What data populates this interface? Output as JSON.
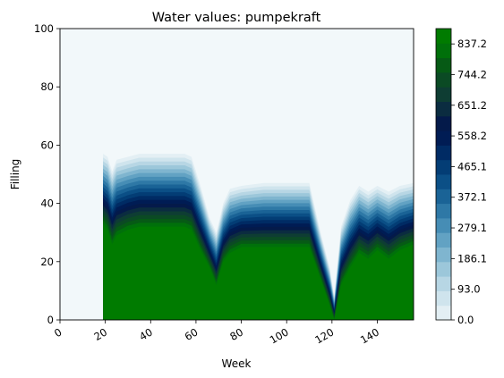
{
  "chart_data": {
    "type": "heatmap",
    "title": "Water values: pumpekraft",
    "xlabel": "Week",
    "ylabel": "Filling",
    "xlim": [
      0,
      156
    ],
    "ylim": [
      0,
      100
    ],
    "x_ticks": [
      "0",
      "20",
      "40",
      "60",
      "80",
      "100",
      "120",
      "140"
    ],
    "y_ticks": [
      "0",
      "20",
      "40",
      "60",
      "80",
      "100"
    ],
    "colorbar": {
      "colormap": "ocean_r",
      "min": 0.0,
      "max": 883.7,
      "tick_labels": [
        "0.0",
        "93.0",
        "186.1",
        "279.1",
        "372.1",
        "465.1",
        "558.2",
        "651.2",
        "744.2",
        "837.2"
      ]
    },
    "contour_profile": {
      "description_weeks": [
        0,
        18,
        19,
        21,
        23,
        25,
        30,
        35,
        40,
        45,
        50,
        55,
        58,
        62,
        66,
        69,
        72,
        75,
        80,
        90,
        100,
        110,
        115,
        119,
        121,
        124,
        128,
        132,
        136,
        140,
        145,
        150,
        156
      ],
      "outer_edge_filling": [
        0,
        0,
        57,
        56,
        51,
        55,
        56,
        57,
        57,
        57,
        57,
        57,
        56,
        46,
        35,
        30,
        40,
        45,
        46,
        47,
        47,
        47,
        30,
        18,
        8,
        32,
        41,
        46,
        44,
        46,
        44,
        46,
        47
      ],
      "high_value_boundary_filling": [
        0,
        0,
        33,
        31,
        26,
        29,
        31,
        32,
        32,
        32,
        32,
        32,
        31,
        24,
        18,
        12,
        20,
        23,
        25,
        25,
        25,
        25,
        14,
        5,
        0,
        12,
        18,
        23,
        21,
        24,
        21,
        24,
        26
      ]
    },
    "grid": false,
    "legend": "colorbar-right"
  }
}
